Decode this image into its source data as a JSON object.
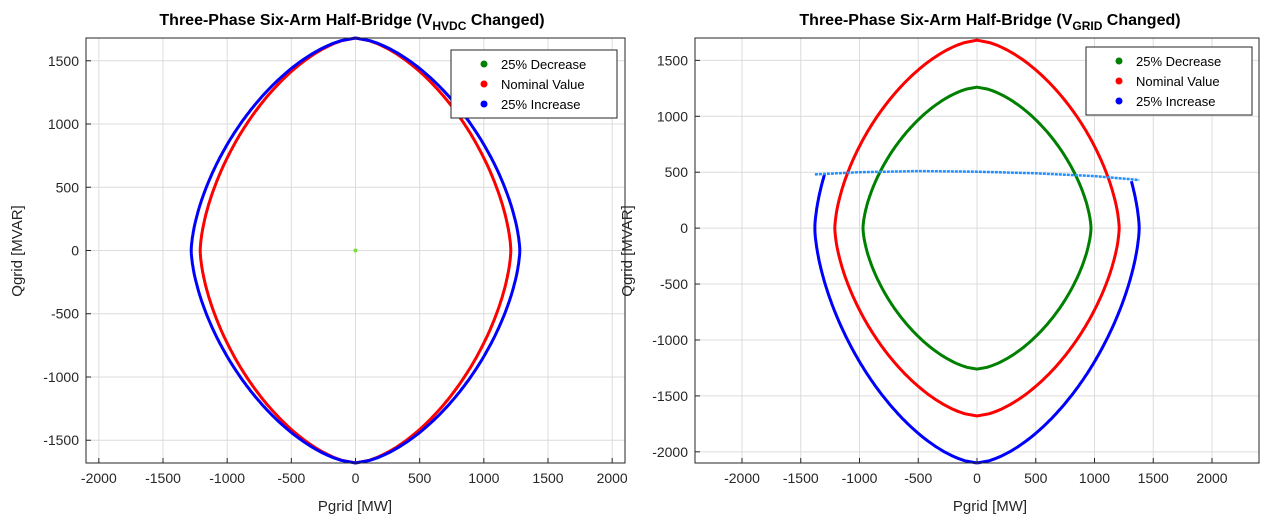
{
  "chart_data": [
    {
      "type": "line",
      "title": {
        "main": "Three-Phase Six-Arm Half-Bridge (V",
        "sub": "HVDC",
        "tail": " Changed)"
      },
      "xlabel": "Pgrid [MW]",
      "ylabel": "Qgrid [MVAR]",
      "xlim": [
        -2100,
        2100
      ],
      "ylim": [
        -1680,
        1680
      ],
      "xticks": [
        -2000,
        -1500,
        -1000,
        -500,
        0,
        500,
        1000,
        1500,
        2000
      ],
      "yticks": [
        -1500,
        -1000,
        -500,
        0,
        500,
        1000,
        1500
      ],
      "grid": true,
      "legend": "top-right",
      "legend_entries": [
        "25% Decrease",
        "Nominal Value",
        "25% Increase"
      ],
      "series": [
        {
          "name": "25% Decrease",
          "color": "#008000",
          "shape": "lens",
          "p_max": 0,
          "q_max": 0
        },
        {
          "name": "Nominal Value",
          "color": "#ff0000",
          "shape": "lens",
          "p_max": 1210,
          "q_max": 1680
        },
        {
          "name": "25% Increase",
          "color": "#0000ff",
          "shape": "lens",
          "p_max": 1280,
          "q_max": 1680
        }
      ],
      "annotation_point": {
        "x": 0,
        "y": 0,
        "color": "#7ddc3c"
      }
    },
    {
      "type": "line",
      "title": {
        "main": "Three-Phase Six-Arm Half-Bridge (V",
        "sub": "GRID",
        "tail": " Changed)"
      },
      "xlabel": "Pgrid [MW]",
      "ylabel": "Qgrid [MVAR]",
      "xlim": [
        -2400,
        2400
      ],
      "ylim": [
        -2100,
        1700
      ],
      "xticks": [
        -2000,
        -1500,
        -1000,
        -500,
        0,
        500,
        1000,
        1500,
        2000
      ],
      "yticks": [
        -2000,
        -1500,
        -1000,
        -500,
        0,
        500,
        1000,
        1500
      ],
      "grid": true,
      "legend": "top-right",
      "legend_entries": [
        "25% Decrease",
        "Nominal Value",
        "25% Increase"
      ],
      "series": [
        {
          "name": "25% Decrease",
          "color": "#008000",
          "shape": "lens",
          "p_max": 970,
          "q_max": 1260
        },
        {
          "name": "Nominal Value",
          "color": "#ff0000",
          "shape": "lens",
          "p_max": 1210,
          "q_max": 1680
        },
        {
          "name": "25% Increase",
          "color": "#0000ff",
          "shape": "clipped-lens",
          "p_max": 1380,
          "q_max": 2100,
          "upper_limit": [
            [
              -1380,
              480
            ],
            [
              -1000,
              500
            ],
            [
              -500,
              510
            ],
            [
              0,
              505
            ],
            [
              500,
              490
            ],
            [
              1000,
              465
            ],
            [
              1380,
              430
            ]
          ],
          "upper_limit_color": "#1e90ff"
        }
      ]
    }
  ]
}
